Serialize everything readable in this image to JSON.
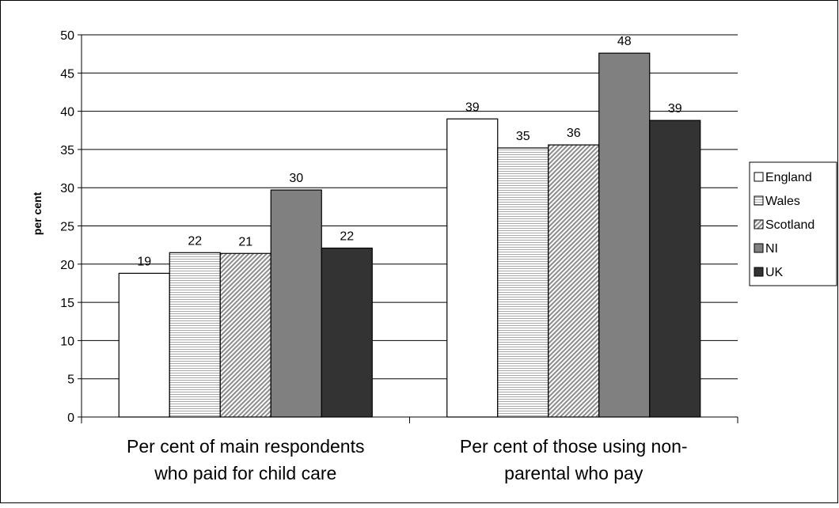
{
  "chart_data": {
    "type": "bar",
    "title": "",
    "xlabel": "",
    "ylabel": "per cent",
    "ylim": [
      0,
      50
    ],
    "yticks": [
      0,
      5,
      10,
      15,
      20,
      25,
      30,
      35,
      40,
      45,
      50
    ],
    "grid": true,
    "legend_position": "right",
    "categories": [
      "Per cent of main respondents who paid for child care",
      "Per cent of those using non-parental who pay"
    ],
    "category_lines": [
      [
        "Per cent of main respondents",
        "who paid for child care"
      ],
      [
        "Per cent of those using non-",
        "parental who pay"
      ]
    ],
    "series": [
      {
        "name": "England",
        "values": [
          18.8,
          39.0
        ],
        "labels": [
          "19",
          "39"
        ],
        "fill": "white",
        "color": "#ffffff"
      },
      {
        "name": "Wales",
        "values": [
          21.5,
          35.2
        ],
        "labels": [
          "22",
          "35"
        ],
        "fill": "hlines",
        "color": "#e6e6e6"
      },
      {
        "name": "Scotland",
        "values": [
          21.4,
          35.6
        ],
        "labels": [
          "21",
          "36"
        ],
        "fill": "hatch",
        "color": "#bdbdbd"
      },
      {
        "name": "NI",
        "values": [
          29.7,
          47.6
        ],
        "labels": [
          "30",
          "48"
        ],
        "fill": "solid",
        "color": "#808080"
      },
      {
        "name": "UK",
        "values": [
          22.1,
          38.8
        ],
        "labels": [
          "22",
          "39"
        ],
        "fill": "solid",
        "color": "#333333"
      }
    ]
  }
}
